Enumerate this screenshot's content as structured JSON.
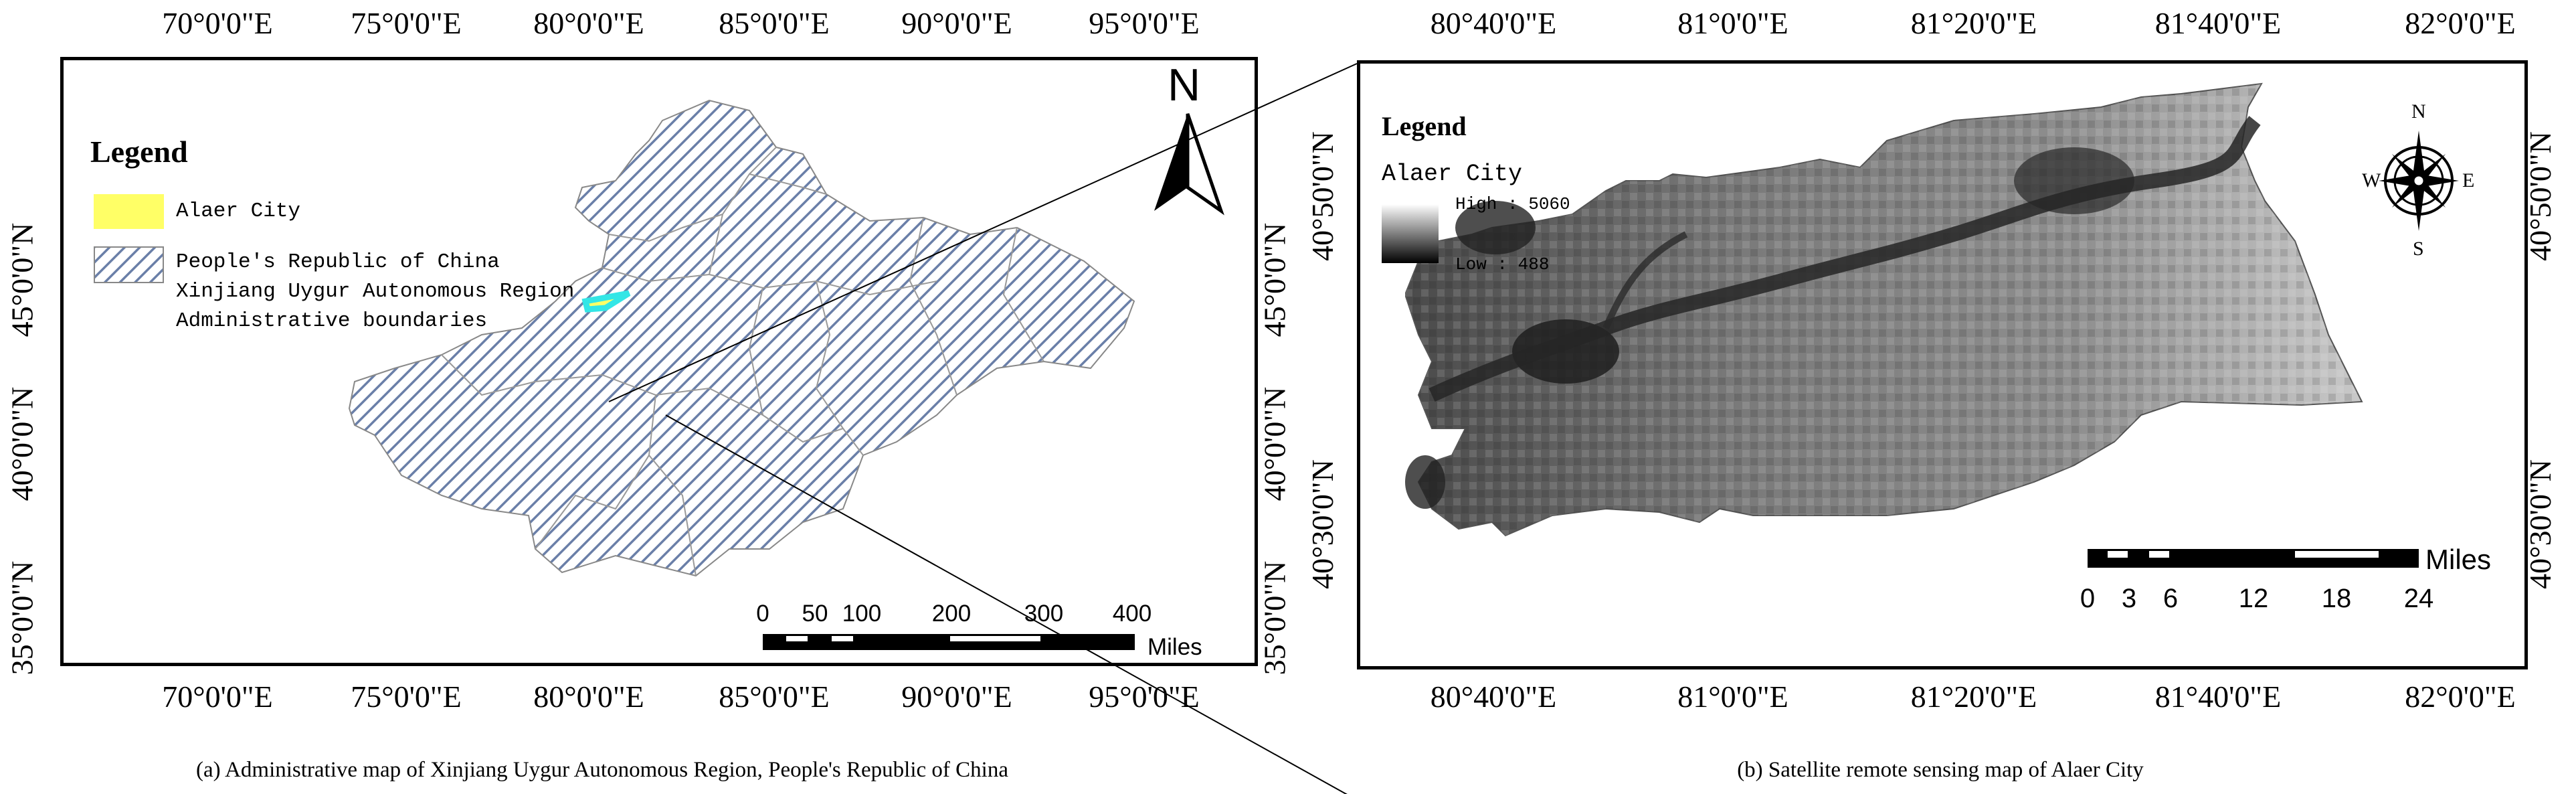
{
  "map_a": {
    "top_ticks": [
      "70°0'0\"E",
      "75°0'0\"E",
      "80°0'0\"E",
      "85°0'0\"E",
      "90°0'0\"E",
      "95°0'0\"E"
    ],
    "bottom_ticks": [
      "70°0'0\"E",
      "75°0'0\"E",
      "80°0'0\"E",
      "85°0'0\"E",
      "90°0'0\"E",
      "95°0'0\"E"
    ],
    "left_ticks": [
      "45°0'0\"N",
      "40°0'0\"N",
      "35°0'0\"N"
    ],
    "right_ticks": [
      "45°0'0\"N",
      "40°0'0\"N",
      "35°0'0\"N"
    ],
    "legend": {
      "title": "Legend",
      "item1": "Alaer City",
      "item2_line1": "People's Republic of China",
      "item2_line2": "Xinjiang Uygur Autonomous Region",
      "item2_line3": "Administrative boundaries"
    },
    "north_label": "N",
    "scale": {
      "labels": [
        "0",
        "50",
        "100",
        "200",
        "300",
        "400"
      ],
      "unit": "Miles"
    },
    "colors": {
      "alaer_fill": "#ffff66",
      "highlight": "#33e6e6",
      "hatch": "#6a7fa8"
    },
    "caption": "(a) Administrative map of Xinjiang Uygur Autonomous Region, People's Republic of China"
  },
  "map_b": {
    "top_ticks": [
      "80°40'0\"E",
      "81°0'0\"E",
      "81°20'0\"E",
      "81°40'0\"E",
      "82°0'0\"E"
    ],
    "bottom_ticks": [
      "80°40'0\"E",
      "81°0'0\"E",
      "81°20'0\"E",
      "81°40'0\"E",
      "82°0'0\"E"
    ],
    "left_ticks": [
      "40°50'0\"N",
      "40°30'0\"N"
    ],
    "right_ticks": [
      "40°50'0\"N",
      "40°30'0\"N"
    ],
    "legend": {
      "title": "Legend",
      "layer": "Alaer City",
      "high": "High : 5060",
      "low": "Low : 488"
    },
    "compass": {
      "n": "N",
      "s": "S",
      "e": "E",
      "w": "W"
    },
    "scale": {
      "labels": [
        "0",
        "3",
        "6",
        "12",
        "18",
        "24"
      ],
      "unit": "Miles"
    },
    "caption": "(b) Satellite remote sensing map of Alaer City"
  }
}
